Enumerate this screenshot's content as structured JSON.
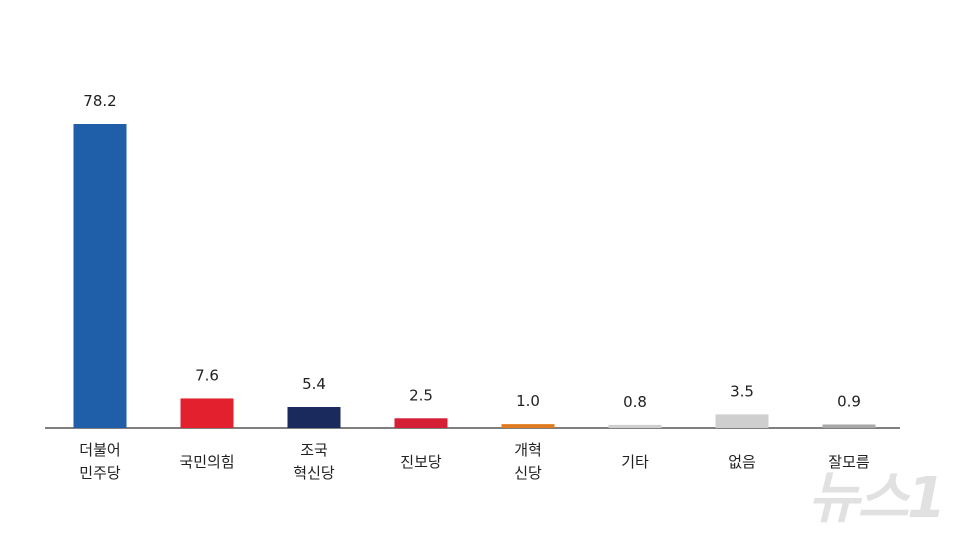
{
  "chart_data": {
    "type": "bar",
    "categories": [
      "더불어\n민주당",
      "국민의힘",
      "조국\n혁신당",
      "진보당",
      "개혁\n신당",
      "기타",
      "없음",
      "잘모름"
    ],
    "values": [
      78.2,
      7.6,
      5.4,
      2.5,
      1.0,
      0.8,
      3.5,
      0.9
    ],
    "value_labels": [
      "78.2",
      "7.6",
      "5.4",
      "2.5",
      "1.0",
      "0.8",
      "3.5",
      "0.9"
    ],
    "colors": [
      "#1f5ea8",
      "#e3202d",
      "#1b2a5c",
      "#d41f35",
      "#e07b20",
      "#cfcfcf",
      "#cfcfcf",
      "#a8a8a8"
    ]
  },
  "watermark": "뉴스1"
}
